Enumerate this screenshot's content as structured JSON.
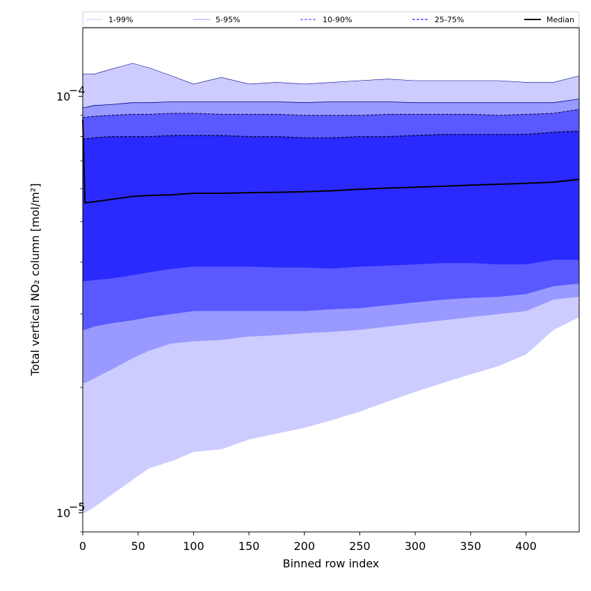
{
  "chart_data": {
    "type": "area",
    "xlabel": "Binned row index",
    "ylabel": "Total vertical NO₂ column [mol/m²]",
    "xlim": [
      0,
      448
    ],
    "ylim": [
      9e-06,
      0.000146
    ],
    "yscale": "log",
    "x_ticks": [
      0,
      50,
      100,
      150,
      200,
      250,
      300,
      350,
      400
    ],
    "y_major_ticks": [
      1e-05,
      0.0001
    ],
    "y_major_tick_labels": [
      "10",
      "10"
    ],
    "y_major_tick_exponents": [
      "−5",
      "−4"
    ],
    "legend_position": "top",
    "legend": [
      "1-99%",
      "5-95%",
      "10-90%",
      "25-75%",
      "Median"
    ],
    "colors": {
      "band_1_99": "#ccccff",
      "band_5_95": "#9999ff",
      "band_10_90": "#5959ff",
      "band_25_75": "#2a2aff",
      "median": "#000000"
    },
    "x": [
      0,
      2,
      10,
      25,
      45,
      60,
      80,
      100,
      125,
      150,
      175,
      200,
      225,
      250,
      275,
      300,
      325,
      350,
      375,
      400,
      425,
      448
    ],
    "series": [
      {
        "name": "1-99%",
        "lower": [
          1e-05,
          1e-05,
          1.03e-05,
          1.1e-05,
          1.2e-05,
          1.28e-05,
          1.33e-05,
          1.4e-05,
          1.42e-05,
          1.5e-05,
          1.55e-05,
          1.6e-05,
          1.67e-05,
          1.75e-05,
          1.85e-05,
          1.95e-05,
          2.05e-05,
          2.15e-05,
          2.25e-05,
          2.4e-05,
          2.75e-05,
          2.95e-05
        ],
        "upper": [
          0.000113,
          0.000113,
          0.000113,
          0.000116,
          0.00012,
          0.000117,
          0.000112,
          0.000107,
          0.000111,
          0.000107,
          0.000108,
          0.000107,
          0.000108,
          0.000109,
          0.00011,
          0.000109,
          0.000109,
          0.000109,
          0.000109,
          0.000108,
          0.000108,
          0.000112
        ]
      },
      {
        "name": "5-95%",
        "lower": [
          2.05e-05,
          2.05e-05,
          2.1e-05,
          2.2e-05,
          2.35e-05,
          2.45e-05,
          2.55e-05,
          2.58e-05,
          2.6e-05,
          2.65e-05,
          2.67e-05,
          2.7e-05,
          2.72e-05,
          2.75e-05,
          2.8e-05,
          2.85e-05,
          2.9e-05,
          2.95e-05,
          3e-05,
          3.05e-05,
          3.25e-05,
          3.3e-05
        ],
        "upper": [
          9.4e-05,
          9.4e-05,
          9.5e-05,
          9.55e-05,
          9.65e-05,
          9.65e-05,
          9.7e-05,
          9.7e-05,
          9.7e-05,
          9.7e-05,
          9.7e-05,
          9.65e-05,
          9.7e-05,
          9.7e-05,
          9.7e-05,
          9.65e-05,
          9.65e-05,
          9.65e-05,
          9.65e-05,
          9.65e-05,
          9.65e-05,
          9.85e-05
        ]
      },
      {
        "name": "10-90%",
        "lower": [
          2.75e-05,
          2.75e-05,
          2.8e-05,
          2.85e-05,
          2.9e-05,
          2.95e-05,
          3e-05,
          3.05e-05,
          3.05e-05,
          3.05e-05,
          3.05e-05,
          3.05e-05,
          3.08e-05,
          3.1e-05,
          3.15e-05,
          3.2e-05,
          3.25e-05,
          3.28e-05,
          3.3e-05,
          3.35e-05,
          3.5e-05,
          3.55e-05
        ],
        "upper": [
          8.9e-05,
          8.9e-05,
          8.95e-05,
          9e-05,
          9.05e-05,
          9.05e-05,
          9.1e-05,
          9.1e-05,
          9.05e-05,
          9.05e-05,
          9.05e-05,
          9e-05,
          9e-05,
          9e-05,
          9.05e-05,
          9.05e-05,
          9.05e-05,
          9.05e-05,
          9e-05,
          9.05e-05,
          9.1e-05,
          9.3e-05
        ]
      },
      {
        "name": "25-75%",
        "lower": [
          3.6e-05,
          3.6e-05,
          3.62e-05,
          3.65e-05,
          3.72e-05,
          3.78e-05,
          3.85e-05,
          3.9e-05,
          3.9e-05,
          3.9e-05,
          3.88e-05,
          3.88e-05,
          3.86e-05,
          3.9e-05,
          3.92e-05,
          3.95e-05,
          3.98e-05,
          3.98e-05,
          3.95e-05,
          3.95e-05,
          4.05e-05,
          4.05e-05
        ],
        "upper": [
          7.9e-05,
          7.9e-05,
          7.95e-05,
          8e-05,
          8e-05,
          8e-05,
          8.05e-05,
          8.05e-05,
          8.05e-05,
          8e-05,
          8e-05,
          7.95e-05,
          7.95e-05,
          8e-05,
          8e-05,
          8.05e-05,
          8.1e-05,
          8.1e-05,
          8.1e-05,
          8.1e-05,
          8.2e-05,
          8.25e-05
        ]
      },
      {
        "name": "Median",
        "values": [
          8.8e-05,
          5.55e-05,
          5.58e-05,
          5.65e-05,
          5.75e-05,
          5.78e-05,
          5.8e-05,
          5.85e-05,
          5.85e-05,
          5.87e-05,
          5.88e-05,
          5.9e-05,
          5.93e-05,
          5.98e-05,
          6.02e-05,
          6.05e-05,
          6.08e-05,
          6.12e-05,
          6.15e-05,
          6.18e-05,
          6.22e-05,
          6.32e-05
        ]
      }
    ]
  }
}
